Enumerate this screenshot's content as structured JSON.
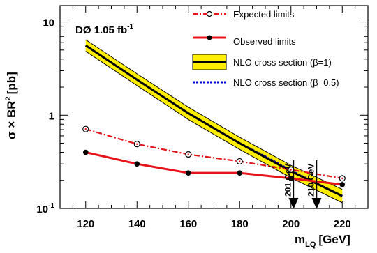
{
  "chart_data": {
    "type": "line",
    "experiment_label": "DØ 1.05 fb",
    "experiment_label_sup": "-1",
    "ylabel": "σ × BR",
    "ylabel_sup": "2",
    "ylabel_unit": "[pb]",
    "xlabel": "m",
    "xlabel_sub": "LQ",
    "xlabel_unit": "[GeV]",
    "xlim": [
      110,
      230
    ],
    "ylim": [
      0.1,
      15
    ],
    "yscale": "log",
    "grid": false,
    "legend_position": "top-right",
    "x_ticks": [
      "120",
      "140",
      "160",
      "180",
      "200",
      "220"
    ],
    "x_tick_values": [
      120,
      140,
      160,
      180,
      200,
      220
    ],
    "y_ticks": [
      {
        "value": 10,
        "base": "10",
        "sup": ""
      },
      {
        "value": 1,
        "base": "1",
        "sup": ""
      },
      {
        "value": 0.1,
        "base": "10",
        "sup": "-1"
      }
    ],
    "series": [
      {
        "name": "Expected limits",
        "style": "dash-dot",
        "color": "#e8141c",
        "marker": "open-circle",
        "x": [
          120,
          140,
          160,
          180,
          200,
          220
        ],
        "y": [
          0.71,
          0.49,
          0.38,
          0.32,
          0.26,
          0.21
        ]
      },
      {
        "name": "Observed limits",
        "style": "solid",
        "color": "#e8141c",
        "marker": "filled-circle",
        "x": [
          120,
          140,
          160,
          180,
          200,
          220
        ],
        "y": [
          0.4,
          0.3,
          0.24,
          0.24,
          0.21,
          0.18
        ]
      },
      {
        "name": "NLO cross section (β=1)",
        "style": "solid-with-band",
        "color": "#000000",
        "band_color": "#ffee00",
        "x": [
          120,
          140,
          160,
          180,
          200,
          220
        ],
        "y": [
          5.6,
          2.4,
          1.05,
          0.5,
          0.25,
          0.136
        ],
        "band_low": [
          4.85,
          2.08,
          0.9,
          0.43,
          0.213,
          0.115
        ],
        "band_high": [
          6.45,
          2.78,
          1.22,
          0.58,
          0.29,
          0.16
        ]
      },
      {
        "name": "NLO cross section (β=0.5)",
        "style": "dotted",
        "color": "#0000dd",
        "x": [
          180,
          190,
          200,
          210,
          220
        ],
        "y": [
          0.5,
          0.36,
          0.255,
          0.185,
          0.135
        ]
      }
    ],
    "annotations": [
      {
        "text": "201 GeV",
        "x": 201
      },
      {
        "text": "210 GeV",
        "x": 210
      }
    ]
  }
}
